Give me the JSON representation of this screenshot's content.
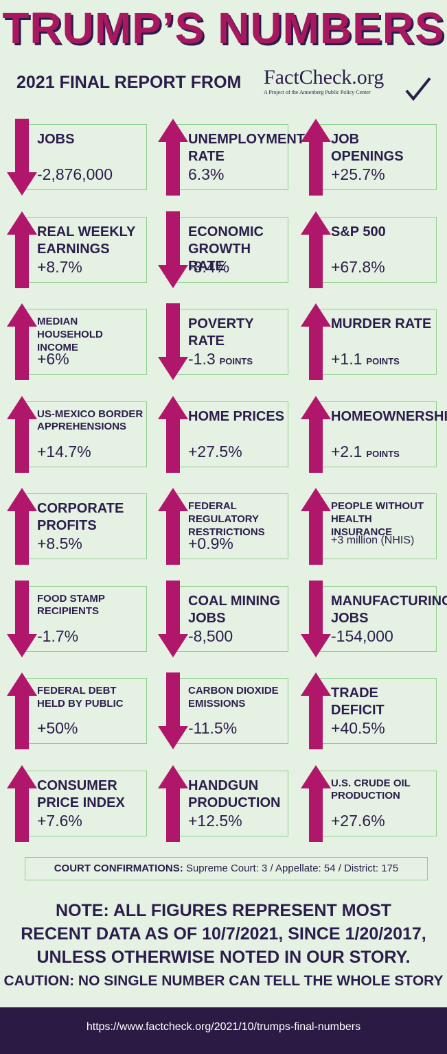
{
  "header": {
    "title": "TRUMP’S NUMBERS",
    "subtitle": "2021 FINAL REPORT FROM",
    "logo": "FactCheck.org",
    "logo_tagline": "A Project of the Annenberg Public Policy Center"
  },
  "items": [
    {
      "label": "JOBS",
      "value": "-2,876,000",
      "direction": "down"
    },
    {
      "label": "UNEMPLOYMENT RATE",
      "value": "6.3%",
      "direction": "up"
    },
    {
      "label": "JOB OPENINGS",
      "value": "+25.7%",
      "direction": "up"
    },
    {
      "label": "REAL WEEKLY EARNINGS",
      "value": "+8.7%",
      "direction": "up"
    },
    {
      "label": "ECONOMIC GROWTH RATE",
      "value": "-3.4%",
      "direction": "down"
    },
    {
      "label": "S&P 500",
      "value": "+67.8%",
      "direction": "up"
    },
    {
      "label": "MEDIAN HOUSEHOLD INCOME",
      "value": "+6%",
      "direction": "up"
    },
    {
      "label": "POVERTY RATE",
      "value": "-1.3",
      "unit": "POINTS",
      "direction": "down"
    },
    {
      "label": "MURDER RATE",
      "value": "+1.1",
      "unit": "POINTS",
      "direction": "up"
    },
    {
      "label": "US-MEXICO BORDER APPREHENSIONS",
      "value": "+14.7%",
      "direction": "up"
    },
    {
      "label": "HOME PRICES",
      "value": "+27.5%",
      "direction": "up"
    },
    {
      "label": "HOMEOWNERSHIP",
      "value": "+2.1",
      "unit": "POINTS",
      "direction": "up"
    },
    {
      "label": "CORPORATE PROFITS",
      "value": "+8.5%",
      "direction": "up"
    },
    {
      "label": "FEDERAL REGULATORY RESTRICTIONS",
      "value": "+0.9%",
      "direction": "up"
    },
    {
      "label": "PEOPLE WITHOUT HEALTH INSURANCE",
      "value": "+3 million (NHIS)",
      "direction": "up"
    },
    {
      "label": "FOOD STAMP RECIPIENTS",
      "value": "-1.7%",
      "direction": "down"
    },
    {
      "label": "COAL MINING JOBS",
      "value": "-8,500",
      "direction": "down"
    },
    {
      "label": "MANUFACTURING JOBS",
      "value": "-154,000",
      "direction": "down"
    },
    {
      "label": "FEDERAL DEBT HELD BY PUBLIC",
      "value": "+50%",
      "direction": "up"
    },
    {
      "label": "CARBON DIOXIDE EMISSIONS",
      "value": "-11.5%",
      "direction": "down"
    },
    {
      "label": "TRADE DEFICIT",
      "value": "+40.5%",
      "direction": "up"
    },
    {
      "label": "CONSUMER PRICE INDEX",
      "value": "+7.6%",
      "direction": "up"
    },
    {
      "label": "HANDGUN PRODUCTION",
      "value": "+12.5%",
      "direction": "up"
    },
    {
      "label": "U.S. CRUDE OIL PRODUCTION",
      "value": "+27.6%",
      "direction": "up"
    }
  ],
  "court": {
    "label": "COURT CONFIRMATIONS:",
    "text": "Supreme Court: 3 / Appellate: 54 / District: 175"
  },
  "note": "NOTE:  ALL FIGURES REPRESENT MOST RECENT DATA AS OF 10/7/2021, SINCE 1/20/2017, UNLESS OTHERWISE NOTED IN OUR STORY.",
  "caution": "CAUTION: NO SINGLE NUMBER CAN TELL THE WHOLE STORY",
  "footer": {
    "url": "https://www.factcheck.org/2021/10/trumps-final-numbers"
  }
}
